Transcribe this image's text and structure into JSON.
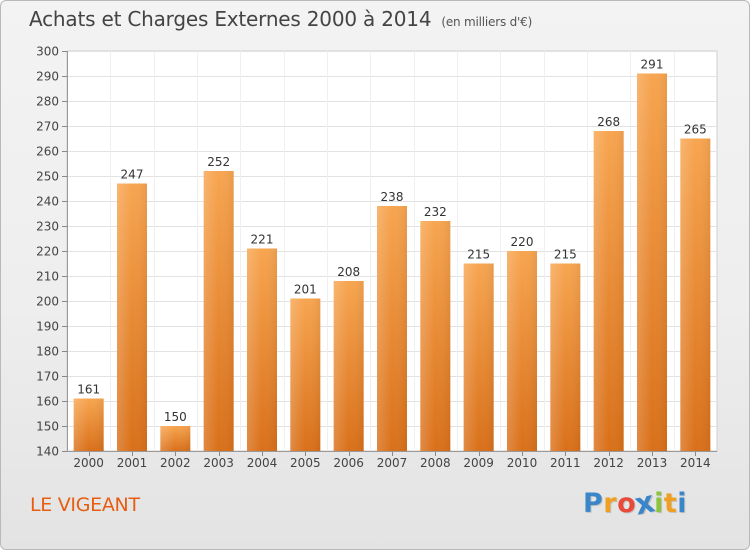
{
  "chart_data": {
    "type": "bar",
    "title": "Achats et Charges Externes 2000 à 2014",
    "subtitle": "(en milliers d'€)",
    "categories": [
      "2000",
      "2001",
      "2002",
      "2003",
      "2004",
      "2005",
      "2006",
      "2007",
      "2008",
      "2009",
      "2010",
      "2011",
      "2012",
      "2013",
      "2014"
    ],
    "values": [
      161,
      247,
      150,
      252,
      221,
      201,
      208,
      238,
      232,
      215,
      220,
      215,
      268,
      291,
      265
    ],
    "ylim": [
      140,
      300
    ],
    "ytick_step": 10,
    "xlabel": "",
    "ylabel": "",
    "grid": true,
    "bar_color": "#f28a2c",
    "bar_color_light": "#f7a550",
    "bar_color_dark": "#d9701a"
  },
  "place_name": "LE VIGEANT",
  "logo": {
    "letters": [
      "P",
      "r",
      "o",
      "x",
      "i",
      "t",
      "i"
    ],
    "colors": [
      "#3a86c8",
      "#f0a020",
      "#e84a3a",
      "#3a86c8",
      "#8cc43c",
      "#f0a020",
      "#3a86c8"
    ]
  }
}
